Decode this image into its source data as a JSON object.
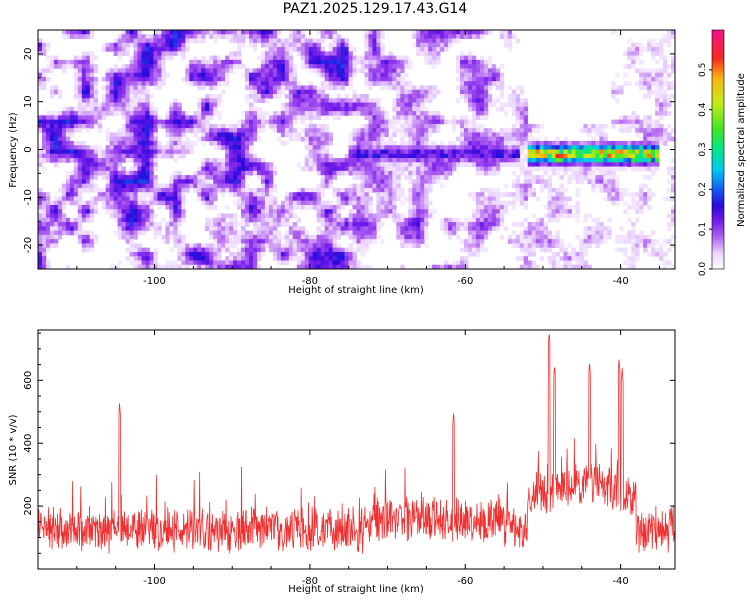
{
  "title": "PAZ1.2025.129.17.43.G14",
  "colors": {
    "snr_line": "#f03030",
    "axis": "#000000",
    "background": "#ffffff"
  },
  "chart_data": [
    {
      "type": "heatmap",
      "title": "PAZ1.2025.129.17.43.G14",
      "xlabel": "Height of straight line (km)",
      "ylabel": "Frequency (Hz)",
      "xlim": [
        -115,
        -33
      ],
      "ylim": [
        -25,
        25
      ],
      "x_ticks": [
        -100,
        -80,
        -60,
        -40
      ],
      "y_ticks": [
        -20,
        -10,
        0,
        10,
        20
      ],
      "colorbar": {
        "label": "Normalized spectral amplitude",
        "range": [
          0,
          0.6
        ],
        "ticks": [
          0.0,
          0.1,
          0.2,
          0.3,
          0.4,
          0.5
        ],
        "colormap": "white-purple-blue-cyan-green-yellow-red-magenta"
      },
      "features": [
        {
          "x_range": [
            -75,
            -53
          ],
          "frequency_hz": -1,
          "amplitude": 0.18
        },
        {
          "x_range": [
            -52,
            -35
          ],
          "frequency_hz": -1,
          "amplitude": 0.55
        },
        {
          "peak_x": -48,
          "frequency_hz": -1.5,
          "amplitude": 0.55
        },
        {
          "peak_x": -40,
          "frequency_hz": -0.5,
          "amplitude": 0.5
        }
      ],
      "grid": false
    },
    {
      "type": "line",
      "xlabel": "Height of straight line (km)",
      "ylabel": "SNR (10 * v/v)",
      "xlim": [
        -115,
        -33
      ],
      "ylim": [
        0,
        760
      ],
      "x_ticks": [
        -100,
        -80,
        -60,
        -40
      ],
      "y_ticks": [
        200,
        400,
        600
      ],
      "series": [
        {
          "baseline_snr": 120,
          "peaks": [
            {
              "x": -104.5,
              "y": 530
            },
            {
              "x": -61.5,
              "y": 500
            },
            {
              "x": -49.2,
              "y": 755
            },
            {
              "x": -48.5,
              "y": 650
            },
            {
              "x": -44.0,
              "y": 660
            },
            {
              "x": -40.2,
              "y": 670
            },
            {
              "x": -39.8,
              "y": 640
            }
          ]
        }
      ],
      "grid": false
    }
  ]
}
